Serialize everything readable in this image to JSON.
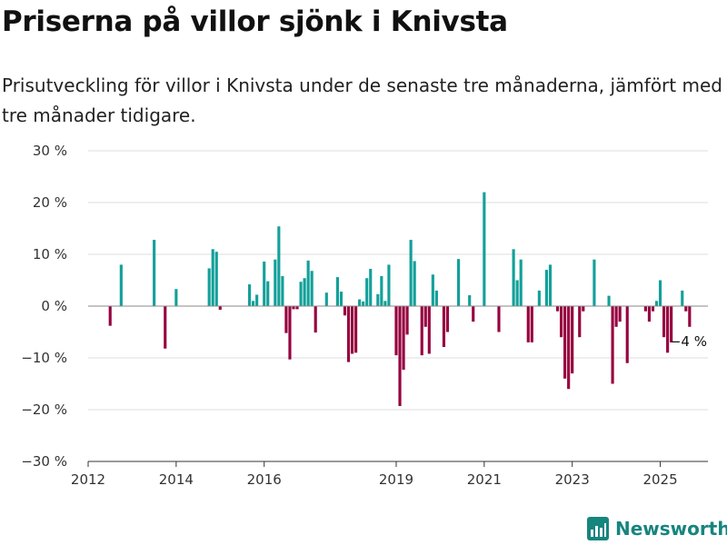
{
  "title": "Priserna på villor sjönk i Knivsta",
  "subtitle": "Prisutveckling för villor i Knivsta under de senaste tre månaderna, jämfört med tre månader tidigare.",
  "brand": "Newsworthy",
  "colors": {
    "positive": "#13a09a",
    "negative": "#96003f",
    "grid": "#dddddd",
    "brand": "#16857e"
  },
  "chart_data": {
    "type": "bar",
    "title": "Priserna på villor sjönk i Knivsta",
    "subtitle": "Prisutveckling för villor i Knivsta under de senaste tre månaderna, jämfört med tre månader tidigare.",
    "xlabel": "",
    "ylabel": "",
    "unit": "%",
    "x_ticks": [
      "2012",
      "2014",
      "2016",
      "2019",
      "2021",
      "2023",
      "2025"
    ],
    "y_ticks": [
      "30 %",
      "20 %",
      "10 %",
      "0 %",
      "−10 %",
      "−20 %",
      "−30 %"
    ],
    "ylim": [
      -30,
      30
    ],
    "xlim": [
      "2012-01",
      "2026-02"
    ],
    "grid": true,
    "annotation": "−4 %",
    "series": [
      {
        "points": [
          [
            "2012-07",
            -3.8
          ],
          [
            "2012-10",
            8.0
          ],
          [
            "2013-07",
            12.8
          ],
          [
            "2013-10",
            -8.2
          ],
          [
            "2014-01",
            3.3
          ],
          [
            "2014-10",
            7.3
          ],
          [
            "2014-11",
            11.0
          ],
          [
            "2014-12",
            10.5
          ],
          [
            "2015-01",
            -0.7
          ],
          [
            "2015-09",
            4.2
          ],
          [
            "2015-10",
            1.0
          ],
          [
            "2015-11",
            2.2
          ],
          [
            "2016-01",
            8.6
          ],
          [
            "2016-02",
            4.8
          ],
          [
            "2016-04",
            9.0
          ],
          [
            "2016-05",
            15.4
          ],
          [
            "2016-06",
            5.8
          ],
          [
            "2016-07",
            -5.2
          ],
          [
            "2016-08",
            -10.3
          ],
          [
            "2016-09",
            -0.6
          ],
          [
            "2016-10",
            -0.6
          ],
          [
            "2016-11",
            4.7
          ],
          [
            "2016-12",
            5.4
          ],
          [
            "2017-01",
            8.8
          ],
          [
            "2017-02",
            6.8
          ],
          [
            "2017-03",
            -5.1
          ],
          [
            "2017-06",
            2.6
          ],
          [
            "2017-09",
            5.6
          ],
          [
            "2017-10",
            2.8
          ],
          [
            "2017-11",
            -1.8
          ],
          [
            "2017-12",
            -10.8
          ],
          [
            "2018-01",
            -9.2
          ],
          [
            "2018-02",
            -9.0
          ],
          [
            "2018-03",
            1.3
          ],
          [
            "2018-04",
            0.9
          ],
          [
            "2018-05",
            5.4
          ],
          [
            "2018-06",
            7.2
          ],
          [
            "2018-08",
            2.3
          ],
          [
            "2018-09",
            5.8
          ],
          [
            "2018-10",
            1.0
          ],
          [
            "2018-11",
            8.0
          ],
          [
            "2019-01",
            -9.5
          ],
          [
            "2019-02",
            -19.3
          ],
          [
            "2019-03",
            -12.3
          ],
          [
            "2019-04",
            -5.5
          ],
          [
            "2019-05",
            12.8
          ],
          [
            "2019-06",
            8.7
          ],
          [
            "2019-08",
            -9.5
          ],
          [
            "2019-09",
            -4.0
          ],
          [
            "2019-10",
            -9.2
          ],
          [
            "2019-11",
            6.1
          ],
          [
            "2019-12",
            3.0
          ],
          [
            "2020-02",
            -7.9
          ],
          [
            "2020-03",
            -5.0
          ],
          [
            "2020-06",
            9.1
          ],
          [
            "2020-09",
            2.1
          ],
          [
            "2020-10",
            -3.0
          ],
          [
            "2021-01",
            22.0
          ],
          [
            "2021-05",
            -5.0
          ],
          [
            "2021-09",
            11.0
          ],
          [
            "2021-10",
            5.0
          ],
          [
            "2021-11",
            9.0
          ],
          [
            "2022-01",
            -7.0
          ],
          [
            "2022-02",
            -7.0
          ],
          [
            "2022-04",
            3.0
          ],
          [
            "2022-06",
            7.0
          ],
          [
            "2022-07",
            8.0
          ],
          [
            "2022-09",
            -1.0
          ],
          [
            "2022-10",
            -6.0
          ],
          [
            "2022-11",
            -14.0
          ],
          [
            "2022-12",
            -16.0
          ],
          [
            "2023-01",
            -13.0
          ],
          [
            "2023-03",
            -6.0
          ],
          [
            "2023-04",
            -1.0
          ],
          [
            "2023-07",
            9.0
          ],
          [
            "2023-11",
            2.0
          ],
          [
            "2023-12",
            -15.0
          ],
          [
            "2024-01",
            -4.0
          ],
          [
            "2024-02",
            -3.0
          ],
          [
            "2024-04",
            -11.0
          ],
          [
            "2024-09",
            -1.0
          ],
          [
            "2024-10",
            -3.0
          ],
          [
            "2024-11",
            -1.0
          ],
          [
            "2024-12",
            1.0
          ],
          [
            "2025-01",
            5.0
          ],
          [
            "2025-02",
            -6.0
          ],
          [
            "2025-03",
            -9.0
          ],
          [
            "2025-04",
            -7.0
          ],
          [
            "2025-07",
            3.0
          ],
          [
            "2025-08",
            -1.0
          ],
          [
            "2025-09",
            -4.0
          ]
        ]
      }
    ]
  }
}
